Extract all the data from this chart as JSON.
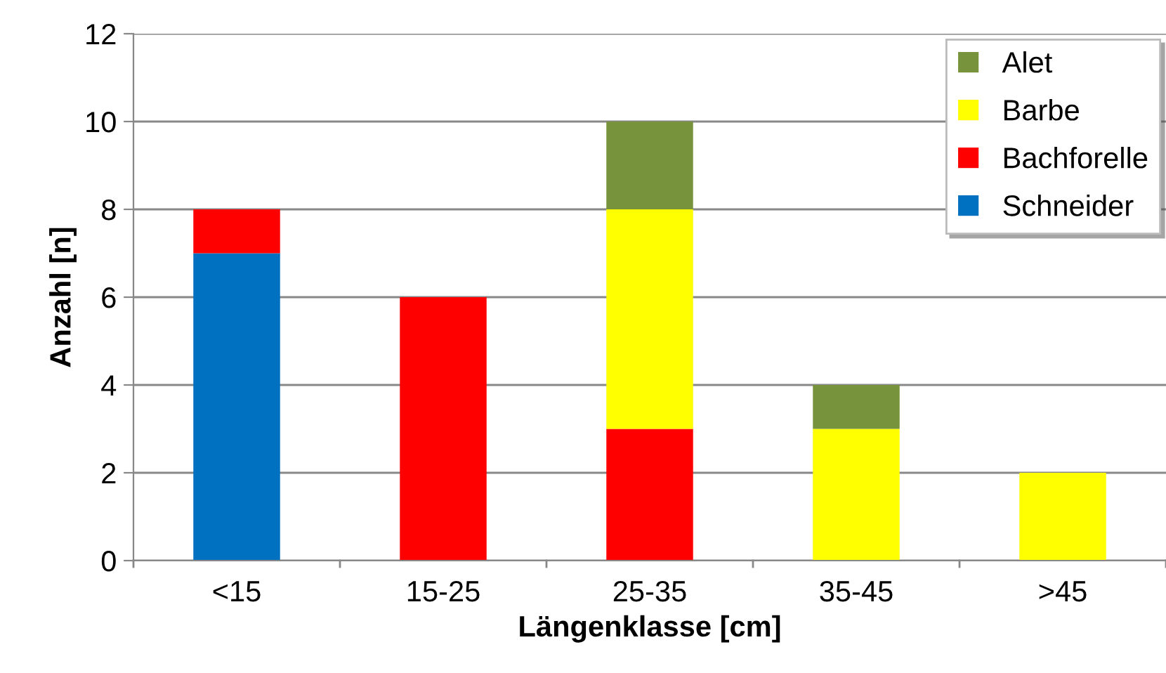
{
  "chart_data": {
    "type": "bar",
    "stacked": true,
    "xlabel": "Längenklasse [cm]",
    "ylabel": "Anzahl [n]",
    "categories": [
      "<15",
      "15-25",
      "25-35",
      "35-45",
      ">45"
    ],
    "series": [
      {
        "name": "Schneider",
        "color": "#0070c0",
        "values": [
          7,
          null,
          null,
          null,
          null
        ]
      },
      {
        "name": "Bachforelle",
        "color": "#ff0000",
        "values": [
          1,
          6,
          3,
          null,
          null
        ]
      },
      {
        "name": "Barbe",
        "color": "#ffff00",
        "values": [
          null,
          null,
          5,
          3,
          2
        ]
      },
      {
        "name": "Alet",
        "color": "#77933c",
        "values": [
          null,
          null,
          2,
          1,
          null
        ]
      }
    ],
    "ylim": [
      0,
      12
    ],
    "yticks": [
      0,
      2,
      4,
      6,
      8,
      10,
      12
    ],
    "grid": "y",
    "legend": "top right"
  }
}
